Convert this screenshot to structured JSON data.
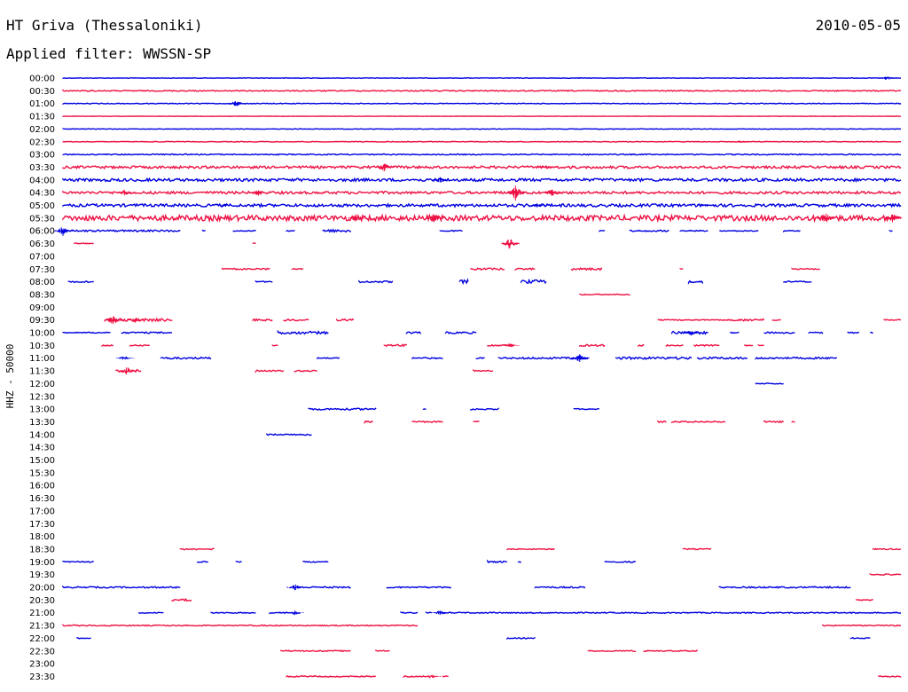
{
  "header": {
    "station": "HT Griva (Thessaloniki)",
    "date": "2010-05-05",
    "filter": "Applied filter: WWSSN-SP"
  },
  "chart_data": {
    "type": "line",
    "title": "HT Griva (Thessaloniki)",
    "ylabel": "HHZ - 50000",
    "xlim": [
      0,
      30
    ],
    "colors": {
      "blue": "#0000e0",
      "red": "#ee1144"
    },
    "series": [
      {
        "name": "00:00",
        "color": "blue",
        "segments": [
          [
            0,
            30,
            0.3
          ]
        ],
        "bursts": [
          [
            18.5,
            1.2
          ],
          [
            29.5,
            3
          ]
        ]
      },
      {
        "name": "00:30",
        "color": "red",
        "segments": [
          [
            0,
            30,
            0.6
          ]
        ],
        "bursts": []
      },
      {
        "name": "01:00",
        "color": "blue",
        "segments": [
          [
            0,
            30,
            0.4
          ]
        ],
        "bursts": [
          [
            6.2,
            4
          ]
        ]
      },
      {
        "name": "01:30",
        "color": "red",
        "segments": [
          [
            0,
            30,
            0.2
          ]
        ],
        "bursts": []
      },
      {
        "name": "02:00",
        "color": "blue",
        "segments": [
          [
            0,
            30,
            0.3
          ]
        ],
        "bursts": []
      },
      {
        "name": "02:30",
        "color": "red",
        "segments": [
          [
            0,
            30,
            0.4
          ]
        ],
        "bursts": [
          [
            24.3,
            2
          ]
        ]
      },
      {
        "name": "03:00",
        "color": "blue",
        "segments": [
          [
            0,
            30,
            0.6
          ]
        ],
        "bursts": []
      },
      {
        "name": "03:30",
        "color": "red",
        "segments": [
          [
            0,
            30,
            1.4
          ]
        ],
        "bursts": [
          [
            11.5,
            5
          ],
          [
            17.3,
            2.5
          ]
        ]
      },
      {
        "name": "04:00",
        "color": "blue",
        "segments": [
          [
            0,
            30,
            1.6
          ]
        ],
        "bursts": [
          [
            13.5,
            4
          ]
        ]
      },
      {
        "name": "04:30",
        "color": "red",
        "segments": [
          [
            0,
            30,
            1.4
          ]
        ],
        "bursts": [
          [
            2.2,
            4
          ],
          [
            7,
            4
          ],
          [
            16.2,
            9
          ],
          [
            17.5,
            5
          ]
        ]
      },
      {
        "name": "05:00",
        "color": "blue",
        "segments": [
          [
            0,
            30,
            1.6
          ]
        ],
        "bursts": [
          [
            5.8,
            2
          ],
          [
            17,
            3
          ],
          [
            23,
            2
          ]
        ]
      },
      {
        "name": "05:30",
        "color": "red",
        "segments": [
          [
            0,
            30,
            3
          ]
        ],
        "bursts": [
          [
            10.5,
            5
          ],
          [
            13.3,
            6
          ],
          [
            27.3,
            7
          ],
          [
            29.7,
            6
          ]
        ]
      },
      {
        "name": "06:00",
        "color": "blue",
        "segments": [
          [
            0,
            4.2,
            1
          ],
          [
            5,
            5.1,
            0.6
          ],
          [
            6.1,
            6.9,
            0.5
          ],
          [
            8,
            8.3,
            0.6
          ],
          [
            9.3,
            10.3,
            1.5
          ],
          [
            13.5,
            14.3,
            0.6
          ],
          [
            19.2,
            19.4,
            0.5
          ],
          [
            20.3,
            21.7,
            0.8
          ],
          [
            22.1,
            23.1,
            0.6
          ],
          [
            23.5,
            24.9,
            0.6
          ],
          [
            25.8,
            26.4,
            0.6
          ],
          [
            29.6,
            29.7,
            0.5
          ]
        ],
        "bursts": [
          [
            0,
            6
          ]
        ]
      },
      {
        "name": "06:30",
        "color": "red",
        "segments": [
          [
            0.4,
            1.1,
            0.6
          ],
          [
            6.8,
            6.9,
            0.8
          ]
        ],
        "bursts": [
          [
            16,
            7
          ]
        ]
      },
      {
        "name": "07:00",
        "color": "blue",
        "segments": [],
        "bursts": []
      },
      {
        "name": "07:30",
        "color": "red",
        "segments": [
          [
            5.7,
            7.4,
            0.8
          ],
          [
            8.2,
            8.6,
            0.6
          ],
          [
            14.6,
            15.8,
            1.2
          ],
          [
            16.2,
            16.9,
            1
          ],
          [
            18.2,
            19.3,
            1.2
          ],
          [
            22.1,
            22.2,
            0.6
          ],
          [
            26.1,
            27.1,
            0.6
          ]
        ],
        "bursts": []
      },
      {
        "name": "08:00",
        "color": "blue",
        "segments": [
          [
            0.2,
            1.1,
            0.8
          ],
          [
            6.9,
            7.5,
            0.6
          ],
          [
            10.6,
            11.8,
            1
          ],
          [
            14.2,
            14.5,
            2
          ],
          [
            16.4,
            17.3,
            2
          ],
          [
            22.4,
            22.9,
            1.2
          ],
          [
            25.8,
            26.8,
            0.8
          ]
        ],
        "bursts": []
      },
      {
        "name": "08:30",
        "color": "red",
        "segments": [
          [
            18.5,
            20.3,
            0.6
          ]
        ],
        "bursts": []
      },
      {
        "name": "09:00",
        "color": "blue",
        "segments": [],
        "bursts": []
      },
      {
        "name": "09:30",
        "color": "red",
        "segments": [
          [
            1.5,
            3.9,
            1.5
          ],
          [
            6.8,
            7.5,
            1
          ],
          [
            7.9,
            8.8,
            1
          ],
          [
            9.8,
            10.4,
            1
          ],
          [
            21.3,
            24,
            0.6
          ],
          [
            24,
            25.1,
            1.2
          ],
          [
            25.4,
            25.7,
            0.6
          ],
          [
            29.4,
            30,
            0.6
          ]
        ],
        "bursts": [
          [
            1.8,
            6
          ],
          [
            2.6,
            4
          ]
        ]
      },
      {
        "name": "10:00",
        "color": "blue",
        "segments": [
          [
            0,
            1.7,
            0.6
          ],
          [
            2.1,
            3.9,
            0.8
          ],
          [
            7.7,
            9.5,
            1.5
          ],
          [
            12.3,
            12.8,
            1
          ],
          [
            13.7,
            14.8,
            1
          ],
          [
            21.8,
            23.1,
            1.5
          ],
          [
            23.9,
            24.2,
            0.5
          ],
          [
            25.1,
            26.2,
            0.8
          ],
          [
            26.7,
            27.2,
            0.6
          ],
          [
            28.1,
            28.5,
            0.6
          ],
          [
            28.9,
            29,
            0.5
          ]
        ],
        "bursts": [
          [
            22.5,
            4
          ]
        ]
      },
      {
        "name": "10:30",
        "color": "red",
        "segments": [
          [
            1.4,
            1.8,
            0.6
          ],
          [
            2.4,
            3.1,
            0.6
          ],
          [
            7.5,
            7.7,
            0.5
          ],
          [
            11.5,
            12.3,
            1
          ],
          [
            15.2,
            16.1,
            1
          ],
          [
            18.5,
            19.4,
            1
          ],
          [
            20.6,
            20.8,
            0.8
          ],
          [
            21.6,
            22.2,
            0.8
          ],
          [
            22.6,
            23.5,
            0.8
          ],
          [
            24.4,
            24.7,
            0.6
          ],
          [
            24.9,
            25.1,
            0.5
          ]
        ],
        "bursts": [
          [
            16,
            3
          ]
        ]
      },
      {
        "name": "11:00",
        "color": "blue",
        "segments": [
          [
            2.1,
            2.3,
            1
          ],
          [
            3.5,
            5.3,
            1
          ],
          [
            9.1,
            9.9,
            0.6
          ],
          [
            12.5,
            13.6,
            0.8
          ],
          [
            14.8,
            15.1,
            0.6
          ],
          [
            15.6,
            16.5,
            0.8
          ],
          [
            16.5,
            18.8,
            1
          ],
          [
            18.2,
            18.8,
            1.2
          ],
          [
            19.8,
            22.5,
            1.3
          ],
          [
            22.7,
            24.5,
            1.2
          ],
          [
            24.8,
            27.7,
            1
          ]
        ],
        "bursts": [
          [
            2.2,
            3
          ],
          [
            18.5,
            5
          ]
        ]
      },
      {
        "name": "11:30",
        "color": "red",
        "segments": [
          [
            1.9,
            2.8,
            1.4
          ],
          [
            6.9,
            7.9,
            0.8
          ],
          [
            8.3,
            9.1,
            0.8
          ],
          [
            14.7,
            15.4,
            0.8
          ]
        ],
        "bursts": [
          [
            2.3,
            5
          ]
        ]
      },
      {
        "name": "12:00",
        "color": "blue",
        "segments": [
          [
            24.8,
            25.8,
            0.6
          ]
        ],
        "bursts": []
      },
      {
        "name": "12:30",
        "color": "red",
        "segments": [],
        "bursts": []
      },
      {
        "name": "13:00",
        "color": "blue",
        "segments": [
          [
            8.8,
            11.2,
            1
          ],
          [
            12.9,
            13,
            0.8
          ],
          [
            14.6,
            15.6,
            0.8
          ],
          [
            18.3,
            19.2,
            0.6
          ]
        ],
        "bursts": []
      },
      {
        "name": "13:30",
        "color": "red",
        "segments": [
          [
            10.8,
            11.1,
            1
          ],
          [
            12.5,
            13.6,
            0.8
          ],
          [
            14.7,
            14.9,
            0.8
          ],
          [
            21.3,
            21.6,
            0.8
          ],
          [
            21.8,
            23.7,
            0.8
          ],
          [
            25.1,
            25.8,
            0.8
          ],
          [
            26.1,
            26.2,
            0.6
          ]
        ],
        "bursts": []
      },
      {
        "name": "14:00",
        "color": "blue",
        "segments": [
          [
            7.3,
            8.9,
            0.8
          ]
        ],
        "bursts": []
      },
      {
        "name": "14:30",
        "color": "red",
        "segments": [],
        "bursts": []
      },
      {
        "name": "15:00",
        "color": "blue",
        "segments": [],
        "bursts": []
      },
      {
        "name": "15:30",
        "color": "red",
        "segments": [],
        "bursts": []
      },
      {
        "name": "16:00",
        "color": "blue",
        "segments": [],
        "bursts": []
      },
      {
        "name": "16:30",
        "color": "red",
        "segments": [],
        "bursts": []
      },
      {
        "name": "17:00",
        "color": "blue",
        "segments": [],
        "bursts": []
      },
      {
        "name": "17:30",
        "color": "red",
        "segments": [],
        "bursts": []
      },
      {
        "name": "18:00",
        "color": "blue",
        "segments": [],
        "bursts": []
      },
      {
        "name": "18:30",
        "color": "red",
        "segments": [
          [
            4.2,
            5.4,
            0.8
          ],
          [
            15.9,
            17.6,
            0.6
          ],
          [
            22.2,
            23.2,
            0.6
          ],
          [
            29,
            30,
            0.6
          ]
        ],
        "bursts": []
      },
      {
        "name": "19:00",
        "color": "blue",
        "segments": [
          [
            0,
            1.1,
            0.6
          ],
          [
            4.8,
            5.2,
            0.6
          ],
          [
            6.2,
            6.4,
            0.5
          ],
          [
            8.6,
            9.5,
            0.6
          ],
          [
            15.2,
            15.9,
            0.8
          ],
          [
            16.3,
            16.4,
            0.5
          ],
          [
            19.4,
            20.5,
            0.6
          ]
        ],
        "bursts": []
      },
      {
        "name": "19:30",
        "color": "red",
        "segments": [
          [
            28.9,
            30,
            0.6
          ]
        ],
        "bursts": []
      },
      {
        "name": "20:00",
        "color": "blue",
        "segments": [
          [
            0,
            4.2,
            0.8
          ],
          [
            8.2,
            10.3,
            0.8
          ],
          [
            11.6,
            13.9,
            0.8
          ],
          [
            16.9,
            18.7,
            0.8
          ],
          [
            23.5,
            28.2,
            0.8
          ]
        ],
        "bursts": [
          [
            8.3,
            4
          ]
        ]
      },
      {
        "name": "20:30",
        "color": "red",
        "segments": [
          [
            3.9,
            4.6,
            1.2
          ],
          [
            28.4,
            29,
            0.6
          ]
        ],
        "bursts": []
      },
      {
        "name": "21:00",
        "color": "blue",
        "segments": [
          [
            2.7,
            3.6,
            0.6
          ],
          [
            5.3,
            6.9,
            0.6
          ],
          [
            7.4,
            8.2,
            0.6
          ],
          [
            8.3,
            8.5,
            0.6
          ],
          [
            12.1,
            12.7,
            0.6
          ],
          [
            13,
            13.2,
            0.5
          ],
          [
            13.5,
            30,
            0.6
          ]
        ],
        "bursts": [
          [
            8.3,
            3
          ],
          [
            13.5,
            3
          ]
        ]
      },
      {
        "name": "21:30",
        "color": "red",
        "segments": [
          [
            0,
            12.7,
            0.6
          ],
          [
            27.2,
            30,
            0.6
          ]
        ],
        "bursts": []
      },
      {
        "name": "22:00",
        "color": "blue",
        "segments": [
          [
            0.5,
            1,
            0.5
          ],
          [
            15.9,
            16.9,
            0.5
          ],
          [
            28.2,
            28.9,
            0.6
          ]
        ],
        "bursts": []
      },
      {
        "name": "22:30",
        "color": "red",
        "segments": [
          [
            7.8,
            10.3,
            0.6
          ],
          [
            11.2,
            11.7,
            0.6
          ],
          [
            18.8,
            20.5,
            0.6
          ],
          [
            20.8,
            22.7,
            0.6
          ]
        ],
        "bursts": []
      },
      {
        "name": "23:00",
        "color": "blue",
        "segments": [],
        "bursts": []
      },
      {
        "name": "23:30",
        "color": "red",
        "segments": [
          [
            8,
            11.2,
            0.6
          ],
          [
            12.2,
            13,
            0.6
          ],
          [
            13.6,
            13.8,
            0.5
          ],
          [
            29.2,
            30,
            0.6
          ]
        ],
        "bursts": [
          [
            13.2,
            3
          ]
        ]
      }
    ]
  }
}
